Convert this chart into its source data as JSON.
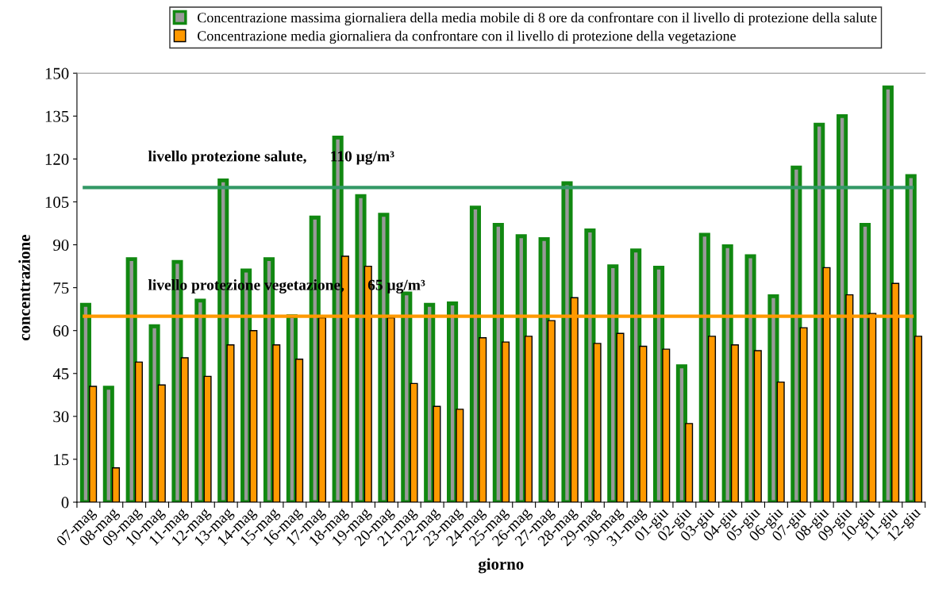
{
  "chart_data": {
    "type": "bar",
    "xlabel": "giorno",
    "ylabel": "concentrazione",
    "categories": [
      "07-mag",
      "08-mag",
      "09-mag",
      "10-mag",
      "11-mag",
      "12-mag",
      "13-mag",
      "14-mag",
      "15-mag",
      "16-mag",
      "17-mag",
      "18-mag",
      "19-mag",
      "20-mag",
      "21-mag",
      "22-mag",
      "23-mag",
      "24-mag",
      "25-mag",
      "26-mag",
      "27-mag",
      "28-mag",
      "29-mag",
      "30-mag",
      "31-mag",
      "01-giu",
      "02-giu",
      "03-giu",
      "04-giu",
      "05-giu",
      "06-giu",
      "07-giu",
      "08-giu",
      "09-giu",
      "10-giu",
      "11-giu",
      "12-giu"
    ],
    "series": [
      {
        "name": "Concentrazione massima giornaliera della media mobile di 8 ore da confrontare con il livello di protezione della salute",
        "color": "#118811",
        "values": [
          69,
          40,
          85,
          61.5,
          84,
          70.5,
          112.5,
          81,
          85,
          65,
          99.5,
          127.5,
          107,
          100.5,
          73,
          69,
          69.5,
          103,
          97,
          93,
          92,
          111.5,
          95,
          82.5,
          88,
          82,
          47.5,
          93.5,
          89.5,
          86,
          72,
          117,
          132,
          135,
          97,
          145,
          114
        ]
      },
      {
        "name": "Concentrazione media giornaliera da confrontare con il livello di protezione della vegetazione",
        "color": "#ff9900",
        "values": [
          40.5,
          12,
          49,
          41,
          50.5,
          44,
          55,
          60,
          55,
          50,
          64.5,
          86,
          82.5,
          64.5,
          41.5,
          33.5,
          32.5,
          57.5,
          56,
          58,
          63.5,
          71.5,
          55.5,
          59,
          54.5,
          53.5,
          27.5,
          58,
          55,
          53,
          42,
          61,
          82,
          72.5,
          66,
          76.5,
          58
        ]
      }
    ],
    "ylim": [
      0,
      150
    ],
    "yticks": [
      0,
      15,
      30,
      45,
      60,
      75,
      90,
      105,
      120,
      135,
      150
    ],
    "ref_lines": [
      {
        "axis": "y",
        "value": 110,
        "label": "livello protezione salute,      110 µg/m³",
        "color": "#339966"
      },
      {
        "axis": "y",
        "value": 65,
        "label": "livello protezione vegetazione,      65 µg/m³",
        "color": "#ff9900"
      }
    ],
    "legend": "top"
  }
}
